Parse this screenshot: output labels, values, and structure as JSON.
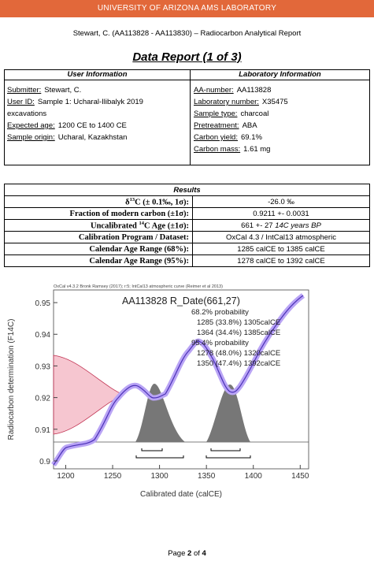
{
  "header": {
    "banner": "UNIVERSITY OF ARIZONA AMS LABORATORY",
    "subtitle": "Stewart, C. (AA113828 - AA113830) – Radiocarbon Analytical Report",
    "title": "Data Report (1 of 3)"
  },
  "info_table": {
    "left_title": "User Information",
    "right_title": "Laboratory Information",
    "left": [
      {
        "label": "Submitter:",
        "value": "Stewart, C."
      },
      {
        "label": "User ID:",
        "value": "Sample 1: Ucharal-Ilibalyk 2019"
      },
      {
        "value": "excavations"
      },
      {
        "label": "Expected age:",
        "value": "1200 CE to 1400 CE"
      },
      {
        "label": "Sample origin:",
        "value": "Ucharal, Kazakhstan"
      }
    ],
    "right": [
      {
        "label": "AA-number:",
        "value": "AA113828"
      },
      {
        "label": "Laboratory number:",
        "value": "X35475"
      },
      {
        "label": "Sample type:",
        "value": "charcoal"
      },
      {
        "label": "Pretreatment:",
        "value": "ABA"
      },
      {
        "label": "Carbon yield:",
        "value": "69.1%"
      },
      {
        "label": "Carbon mass:",
        "value": "1.61 mg"
      }
    ]
  },
  "results": {
    "title": "Results",
    "rows": [
      {
        "label": [
          "δ",
          "13",
          "C (± 0.1‰, 1σ):"
        ],
        "value": [
          "-26.0 ‰",
          ""
        ]
      },
      {
        "label": [
          "Fraction of modern carbon (±1σ):",
          "",
          ""
        ],
        "value": [
          "0.9211 +- 0.0031",
          ""
        ]
      },
      {
        "label": [
          "Uncalibrated ",
          "14",
          "C Age (±1σ):"
        ],
        "value": [
          "661 +- 27 ",
          "14C years BP"
        ]
      },
      {
        "label": [
          "Calibration Program / Dataset:",
          "",
          ""
        ],
        "value": [
          "OxCal 4.3 / IntCal13 atmospheric",
          ""
        ]
      },
      {
        "label": [
          "Calendar Age Range (68%):",
          "",
          ""
        ],
        "value": [
          "1285 calCE to 1385 calCE",
          ""
        ]
      },
      {
        "label": [
          "Calendar Age Range (95%):",
          "",
          ""
        ],
        "value": [
          "1278 calCE to 1392 calCE",
          ""
        ]
      }
    ]
  },
  "chart_data": {
    "type": "calibration",
    "source": "OxCal v4.3.2 Bronk Ramsey (2017); r:5; IntCal13 atmospheric curve (Reimer et al 2013)",
    "title": "AA113828 R_Date(661,27)",
    "annotations": [
      "68.2% probability",
      "1285 (33.8%) 1305calCE",
      "1364 (34.4%) 1385calCE",
      "95.4% probability",
      "1278 (48.0%) 1320calCE",
      "1350 (47.4%) 1392calCE"
    ],
    "x_label": "Calibrated date (calCE)",
    "y_label": "Radiocarbon determination (F14C)",
    "xlim": [
      1187,
      1459
    ],
    "xticks": [
      1200,
      1250,
      1300,
      1350,
      1400,
      1450
    ],
    "ylim": [
      0.8975,
      0.954
    ],
    "yticks": [
      0.9,
      0.91,
      0.92,
      0.93,
      0.94,
      0.95
    ]
  },
  "footer": [
    "Page ",
    "2",
    " of ",
    "4"
  ]
}
